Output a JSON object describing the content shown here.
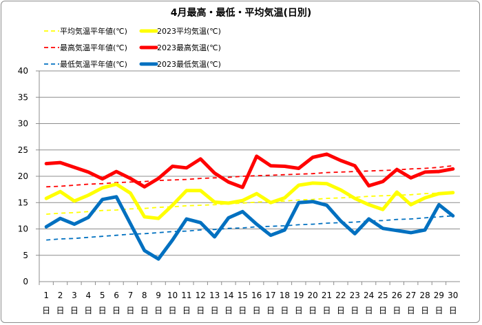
{
  "chart_data": {
    "type": "line",
    "title": "4月最高・最低・平均気温(日別)",
    "xlabel": "",
    "ylabel": "",
    "ylim": [
      0,
      40
    ],
    "yticks": [
      0,
      5,
      10,
      15,
      20,
      25,
      30,
      35,
      40
    ],
    "grid": true,
    "legend_position": "top-left",
    "categories": [
      "1日",
      "2日",
      "3日",
      "4日",
      "5日",
      "6日",
      "7日",
      "8日",
      "9日",
      "10日",
      "11日",
      "12日",
      "13日",
      "14日",
      "15日",
      "16日",
      "17日",
      "18日",
      "19日",
      "20日",
      "21日",
      "22日",
      "23日",
      "24日",
      "25日",
      "26日",
      "27日",
      "28日",
      "29日",
      "30日"
    ],
    "category_parts": [
      {
        "num": "1",
        "unit": "日"
      },
      {
        "num": "2",
        "unit": "日"
      },
      {
        "num": "3",
        "unit": "日"
      },
      {
        "num": "4",
        "unit": "日"
      },
      {
        "num": "5",
        "unit": "日"
      },
      {
        "num": "6",
        "unit": "日"
      },
      {
        "num": "7",
        "unit": "日"
      },
      {
        "num": "8",
        "unit": "日"
      },
      {
        "num": "9",
        "unit": "日"
      },
      {
        "num": "10",
        "unit": "日"
      },
      {
        "num": "11",
        "unit": "日"
      },
      {
        "num": "12",
        "unit": "日"
      },
      {
        "num": "13",
        "unit": "日"
      },
      {
        "num": "14",
        "unit": "日"
      },
      {
        "num": "15",
        "unit": "日"
      },
      {
        "num": "16",
        "unit": "日"
      },
      {
        "num": "17",
        "unit": "日"
      },
      {
        "num": "18",
        "unit": "日"
      },
      {
        "num": "19",
        "unit": "日"
      },
      {
        "num": "20",
        "unit": "日"
      },
      {
        "num": "21",
        "unit": "日"
      },
      {
        "num": "22",
        "unit": "日"
      },
      {
        "num": "23",
        "unit": "日"
      },
      {
        "num": "24",
        "unit": "日"
      },
      {
        "num": "25",
        "unit": "日"
      },
      {
        "num": "26",
        "unit": "日"
      },
      {
        "num": "27",
        "unit": "日"
      },
      {
        "num": "28",
        "unit": "日"
      },
      {
        "num": "29",
        "unit": "日"
      },
      {
        "num": "30",
        "unit": "日"
      }
    ],
    "series": [
      {
        "name": "平均気温平年値(℃)",
        "key": "avg-normal",
        "color": "#ffff00",
        "style": "dashed",
        "values": [
          12.8,
          13.0,
          13.1,
          13.3,
          13.5,
          13.6,
          13.8,
          13.9,
          14.1,
          14.2,
          14.4,
          14.5,
          14.6,
          14.8,
          14.9,
          15.1,
          15.2,
          15.3,
          15.5,
          15.6,
          15.8,
          15.9,
          16.0,
          16.2,
          16.3,
          16.4,
          16.5,
          16.7,
          16.8,
          16.9
        ]
      },
      {
        "name": "2023平均気温(℃)",
        "key": "avg-2023",
        "color": "#ffff00",
        "style": "solid",
        "values": [
          15.8,
          17.1,
          15.3,
          16.4,
          17.8,
          18.5,
          16.8,
          12.3,
          12.0,
          14.5,
          17.3,
          17.3,
          15.1,
          14.9,
          15.4,
          16.7,
          15.0,
          15.9,
          18.3,
          18.7,
          18.6,
          17.4,
          15.8,
          14.6,
          13.7,
          17.0,
          14.6,
          15.9,
          16.7,
          16.9
        ]
      },
      {
        "name": "最高気温平年値(℃)",
        "key": "max-normal",
        "color": "#ff0000",
        "style": "dashed",
        "values": [
          18.0,
          18.1,
          18.3,
          18.5,
          18.6,
          18.8,
          18.9,
          19.0,
          19.2,
          19.3,
          19.4,
          19.6,
          19.7,
          19.8,
          20.0,
          20.1,
          20.2,
          20.3,
          20.4,
          20.5,
          20.7,
          20.8,
          20.9,
          21.0,
          21.1,
          21.2,
          21.4,
          21.5,
          21.7,
          22.0
        ]
      },
      {
        "name": "2023最高気温(℃)",
        "key": "max-2023",
        "color": "#ff0000",
        "style": "solid",
        "values": [
          22.4,
          22.6,
          21.7,
          20.8,
          19.5,
          20.9,
          19.6,
          18.0,
          19.6,
          21.9,
          21.6,
          23.3,
          20.6,
          18.9,
          17.9,
          23.8,
          22.0,
          21.9,
          21.5,
          23.6,
          24.2,
          23.0,
          22.0,
          18.2,
          19.0,
          21.3,
          19.7,
          20.8,
          20.9,
          21.4
        ]
      },
      {
        "name": "最低気温平年値(℃)",
        "key": "min-normal",
        "color": "#0070c0",
        "style": "dashed",
        "values": [
          7.9,
          8.1,
          8.2,
          8.4,
          8.6,
          8.8,
          9.0,
          9.1,
          9.3,
          9.5,
          9.6,
          9.8,
          9.9,
          10.1,
          10.2,
          10.4,
          10.5,
          10.6,
          10.8,
          10.9,
          11.1,
          11.2,
          11.3,
          11.5,
          11.6,
          11.8,
          11.9,
          12.1,
          12.3,
          12.5
        ]
      },
      {
        "name": "2023最低気温(℃)",
        "key": "min-2023",
        "color": "#0070c0",
        "style": "solid",
        "values": [
          10.4,
          12.0,
          10.9,
          12.2,
          15.6,
          16.1,
          11.0,
          5.9,
          4.3,
          7.9,
          11.9,
          11.2,
          8.5,
          12.1,
          13.3,
          10.9,
          8.8,
          9.8,
          15.0,
          15.2,
          14.5,
          11.5,
          9.1,
          11.9,
          10.1,
          9.7,
          9.3,
          9.8,
          14.6,
          12.5
        ]
      }
    ]
  }
}
